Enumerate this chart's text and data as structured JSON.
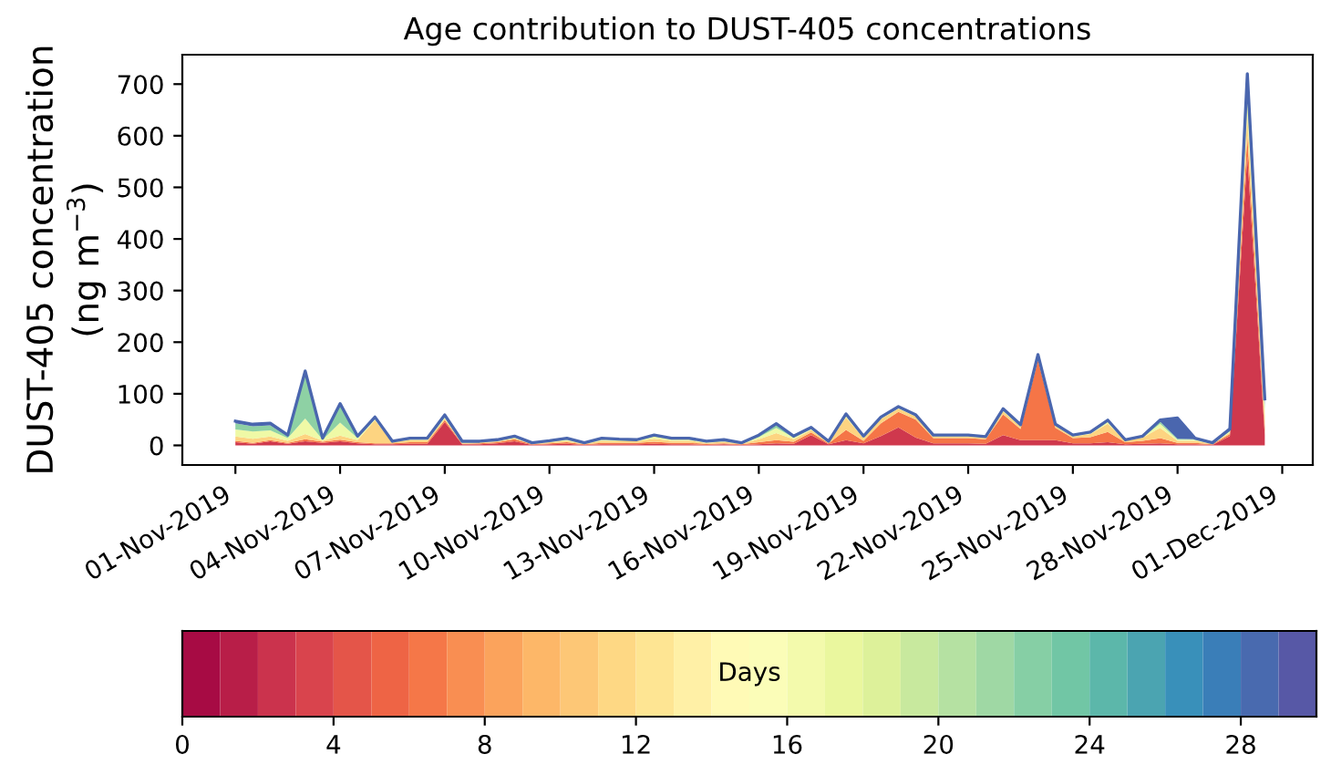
{
  "chart_data": {
    "type": "area",
    "stacked": true,
    "title": "Age contribution to DUST-405 concentrations",
    "ylabel": "DUST-405 concentration\n(ng m$^{−3}$)",
    "clabel": "Days",
    "x": [
      "2019-11-01T00:00",
      "2019-11-01T12:00",
      "2019-11-02T00:00",
      "2019-11-02T12:00",
      "2019-11-03T00:00",
      "2019-11-03T12:00",
      "2019-11-04T00:00",
      "2019-11-04T12:00",
      "2019-11-05T00:00",
      "2019-11-05T12:00",
      "2019-11-06T00:00",
      "2019-11-06T12:00",
      "2019-11-07T00:00",
      "2019-11-07T12:00",
      "2019-11-08T00:00",
      "2019-11-08T12:00",
      "2019-11-09T00:00",
      "2019-11-09T12:00",
      "2019-11-10T00:00",
      "2019-11-10T12:00",
      "2019-11-11T00:00",
      "2019-11-11T12:00",
      "2019-11-12T00:00",
      "2019-11-12T12:00",
      "2019-11-13T00:00",
      "2019-11-13T12:00",
      "2019-11-14T00:00",
      "2019-11-14T12:00",
      "2019-11-15T00:00",
      "2019-11-15T12:00",
      "2019-11-16T00:00",
      "2019-11-16T12:00",
      "2019-11-17T00:00",
      "2019-11-17T12:00",
      "2019-11-18T00:00",
      "2019-11-18T12:00",
      "2019-11-19T00:00",
      "2019-11-19T12:00",
      "2019-11-20T00:00",
      "2019-11-20T12:00",
      "2019-11-21T00:00",
      "2019-11-21T12:00",
      "2019-11-22T00:00",
      "2019-11-22T12:00",
      "2019-11-23T00:00",
      "2019-11-23T12:00",
      "2019-11-24T00:00",
      "2019-11-24T12:00",
      "2019-11-25T00:00",
      "2019-11-25T12:00",
      "2019-11-26T00:00",
      "2019-11-26T12:00",
      "2019-11-27T00:00",
      "2019-11-27T12:00",
      "2019-11-28T00:00",
      "2019-11-28T12:00",
      "2019-11-29T00:00",
      "2019-11-29T12:00",
      "2019-11-30T00:00",
      "2019-11-30T12:00"
    ],
    "series": [
      {
        "color": "#cf384d",
        "values": [
          6,
          3,
          8,
          3,
          8,
          5,
          8,
          4,
          2,
          2,
          3,
          3,
          45,
          2,
          2,
          4,
          8,
          1,
          2,
          3,
          1,
          2,
          2,
          2,
          3,
          2,
          2,
          1,
          2,
          1,
          2,
          4,
          3,
          20,
          2,
          10,
          4,
          18,
          35,
          15,
          4,
          4,
          4,
          3,
          20,
          10,
          10,
          10,
          4,
          4,
          6,
          2,
          3,
          4,
          2,
          2,
          1,
          18,
          560,
          20
        ]
      },
      {
        "color": "#f57547",
        "values": [
          3,
          2,
          2,
          2,
          4,
          2,
          3,
          2,
          2,
          2,
          3,
          3,
          4,
          1,
          2,
          2,
          4,
          1,
          2,
          3,
          1,
          3,
          3,
          3,
          4,
          3,
          3,
          2,
          2,
          1,
          4,
          6,
          4,
          5,
          2,
          20,
          5,
          25,
          30,
          35,
          10,
          10,
          10,
          9,
          40,
          22,
          155,
          24,
          10,
          12,
          20,
          4,
          6,
          10,
          3,
          3,
          1,
          4,
          40,
          15
        ]
      },
      {
        "color": "#fdd481",
        "values": [
          8,
          8,
          7,
          4,
          10,
          2,
          8,
          4,
          45,
          2,
          4,
          4,
          3,
          2,
          2,
          2,
          2,
          1,
          2,
          3,
          1,
          4,
          3,
          3,
          6,
          4,
          4,
          2,
          3,
          1,
          6,
          14,
          5,
          5,
          2,
          24,
          5,
          8,
          6,
          6,
          3,
          3,
          3,
          3,
          6,
          5,
          6,
          4,
          3,
          6,
          16,
          3,
          6,
          20,
          4,
          4,
          1,
          3,
          40,
          20
        ]
      },
      {
        "color": "#eff9a6",
        "values": [
          14,
          14,
          12,
          5,
          30,
          2,
          25,
          4,
          2,
          1,
          2,
          2,
          2,
          1,
          1,
          1,
          2,
          1,
          1,
          2,
          1,
          3,
          2,
          1,
          4,
          3,
          3,
          1,
          2,
          1,
          4,
          10,
          3,
          2,
          1,
          3,
          2,
          2,
          2,
          1,
          1,
          1,
          1,
          1,
          2,
          1,
          2,
          1,
          1,
          2,
          4,
          1,
          1,
          8,
          2,
          2,
          1,
          2,
          30,
          15
        ]
      },
      {
        "color": "#8ed1a4",
        "values": [
          12,
          10,
          10,
          3,
          86,
          1,
          34,
          2,
          2,
          0,
          1,
          1,
          2,
          1,
          0,
          1,
          1,
          0,
          1,
          2,
          0,
          1,
          1,
          1,
          2,
          1,
          1,
          1,
          1,
          0,
          2,
          5,
          2,
          1,
          0,
          2,
          1,
          1,
          1,
          1,
          1,
          1,
          1,
          0,
          1,
          1,
          1,
          1,
          1,
          1,
          2,
          0,
          1,
          4,
          2,
          1,
          0,
          2,
          25,
          10
        ]
      },
      {
        "color": "#4a66ae",
        "values": [
          4,
          4,
          4,
          3,
          6,
          2,
          3,
          2,
          2,
          1,
          1,
          1,
          3,
          1,
          1,
          1,
          1,
          1,
          1,
          1,
          1,
          1,
          1,
          1,
          1,
          1,
          1,
          1,
          1,
          1,
          2,
          3,
          1,
          2,
          1,
          2,
          1,
          1,
          1,
          1,
          1,
          1,
          1,
          1,
          2,
          1,
          2,
          1,
          1,
          1,
          1,
          1,
          1,
          3,
          40,
          2,
          1,
          3,
          25,
          10
        ]
      }
    ],
    "xlim": [
      "2019-10-30T11:30",
      "2019-12-01T21:00"
    ],
    "xticks": [
      {
        "value": "2019-11-01",
        "label": "01-Nov-2019"
      },
      {
        "value": "2019-11-04",
        "label": "04-Nov-2019"
      },
      {
        "value": "2019-11-07",
        "label": "07-Nov-2019"
      },
      {
        "value": "2019-11-10",
        "label": "10-Nov-2019"
      },
      {
        "value": "2019-11-13",
        "label": "13-Nov-2019"
      },
      {
        "value": "2019-11-16",
        "label": "16-Nov-2019"
      },
      {
        "value": "2019-11-19",
        "label": "19-Nov-2019"
      },
      {
        "value": "2019-11-22",
        "label": "22-Nov-2019"
      },
      {
        "value": "2019-11-25",
        "label": "25-Nov-2019"
      },
      {
        "value": "2019-11-28",
        "label": "28-Nov-2019"
      },
      {
        "value": "2019-12-01",
        "label": "01-Dec-2019"
      }
    ],
    "ylim": [
      -38,
      757
    ],
    "yticks": [
      0,
      100,
      200,
      300,
      400,
      500,
      600,
      700
    ],
    "clim": [
      0,
      30
    ],
    "cticks": [
      0,
      4,
      8,
      12,
      16,
      20,
      24,
      28
    ],
    "colors": [
      "#9e0142",
      "#d53e4f",
      "#f46d43",
      "#fdae61",
      "#fee08b",
      "#ffffbf",
      "#e6f598",
      "#abdda4",
      "#66c2a5",
      "#3288bd",
      "#5e4fa2"
    ],
    "grid": false,
    "legend": false
  }
}
